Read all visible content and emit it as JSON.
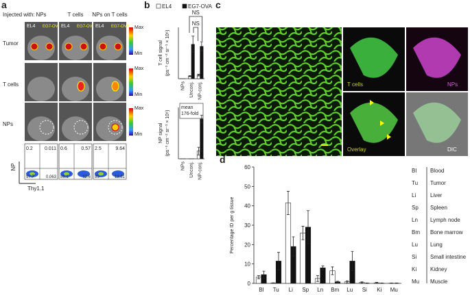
{
  "panel_a": {
    "letter": "a",
    "injected_label": "Injected with:",
    "columns": [
      "NPs",
      "T cells",
      "NPs on T cells"
    ],
    "cell_lines": [
      "EL4",
      "EG7-OVA"
    ],
    "rows": [
      "Tumor",
      "T cells",
      "NPs"
    ],
    "scale": [
      "Max",
      "Min"
    ],
    "flow": {
      "y_axis": "NP",
      "x_axis": "Thy1.1",
      "quadrants": [
        [
          0.2,
          0.011,
          97.7,
          0.063
        ],
        [
          0.6,
          0.57,
          86.1,
          12.6
        ],
        [
          2.5,
          9.64,
          85,
          12.81
        ]
      ]
    }
  },
  "panel_c": {
    "letter": "c",
    "labels": [
      "T cells",
      "NPs",
      "Overlay",
      "DIC"
    ]
  },
  "chart_data": [
    {
      "type": "bar",
      "panel": "b",
      "y_label": [
        "T cell signal",
        "(ps⁻¹ cm⁻² sr⁻¹ × 10⁶)"
      ],
      "categories": [
        "NPs",
        "Unconj.",
        "NP-conj."
      ],
      "series": [
        {
          "name": "EL4",
          "color": "#ffffff",
          "values": [
            0,
            0.25,
            0.35
          ],
          "errors": [
            0,
            0.05,
            0.08
          ]
        },
        {
          "name": "EG7-OVA",
          "color": "#111111",
          "values": [
            0,
            3.35,
            3.15
          ],
          "errors": [
            0,
            0.8,
            0.45
          ]
        }
      ],
      "ylim": [
        0,
        5
      ],
      "annotations": [
        "NS",
        "NS"
      ]
    },
    {
      "type": "bar",
      "y_label": [
        "NP signal",
        "(ps⁻¹ cm⁻² sr⁻¹ × 10⁶)"
      ],
      "categories": [
        "NPs",
        "Unconj.",
        "NP-conj."
      ],
      "series": [
        {
          "color": "#ffffff",
          "values": [
            0,
            0,
            3
          ],
          "errors": [
            0,
            0,
            1.5
          ]
        },
        {
          "color": "#111111",
          "values": [
            0,
            0,
            15.5
          ],
          "errors": [
            0,
            0,
            1.5
          ]
        }
      ],
      "ylim": [
        0,
        20
      ],
      "annotation": [
        "mean",
        "176-fold"
      ]
    },
    {
      "type": "bar",
      "panel": "d",
      "y_label": [
        "Percentage ID per g tissue"
      ],
      "categories": [
        "Bl",
        "Tu",
        "Li",
        "Sp",
        "Ln",
        "Bm",
        "Lu",
        "Si",
        "Ki",
        "Mu"
      ],
      "series": [
        {
          "color": "#ffffff",
          "values": [
            3.2,
            0.2,
            41.5,
            26,
            2.5,
            6.5,
            0.8,
            0.5,
            0.3,
            0.1
          ],
          "errors": [
            0.8,
            0.1,
            6,
            3.5,
            1.5,
            2,
            0.5,
            0.3,
            0.2,
            0.1
          ]
        },
        {
          "color": "#111111",
          "values": [
            4.5,
            11.5,
            19,
            29,
            8,
            0.8,
            11.5,
            0.1,
            0.1,
            0.1
          ],
          "errors": [
            1.8,
            4.5,
            5,
            8.5,
            1,
            0.3,
            5,
            0.1,
            0.1,
            0.1
          ]
        }
      ],
      "ylim": [
        0,
        60
      ],
      "yticks": [
        0,
        10,
        20,
        30,
        40,
        50,
        60
      ],
      "key": {
        "abbr": [
          "Bl",
          "Tu",
          "Li",
          "Sp",
          "Ln",
          "Bm",
          "Lu",
          "Si",
          "Ki",
          "Mu"
        ],
        "names": [
          "Blood",
          "Tumor",
          "Liver",
          "Spleen",
          "Lymph node",
          "Bone marrow",
          "Lung",
          "Small intestine",
          "Kidney",
          "Muscle"
        ]
      }
    }
  ]
}
